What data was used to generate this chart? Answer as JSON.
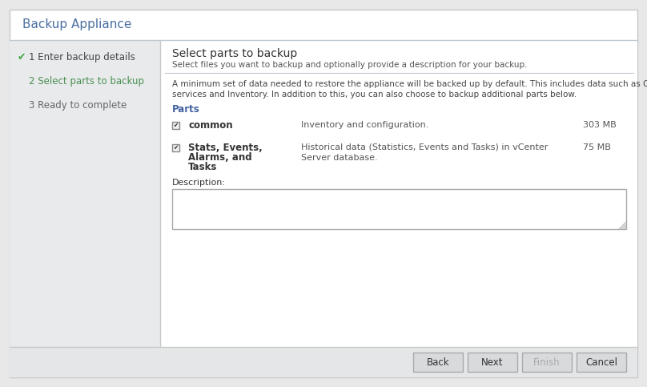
{
  "title": "Backup Appliance",
  "title_color": "#4a6fa0",
  "bg_outer": "#e8e8e8",
  "bg_white": "#ffffff",
  "bg_left_panel": "#e8eaec",
  "border_color": "#c8c8c8",
  "header_sep_color": "#c0c8d0",
  "left_panel_items": [
    {
      "text": "1 Enter backup details",
      "color": "#444444",
      "checkmark": true
    },
    {
      "text": "2 Select parts to backup",
      "color": "#4a9050"
    },
    {
      "text": "3 Ready to complete",
      "color": "#666666"
    }
  ],
  "main_title": "Select parts to backup",
  "main_subtitle": "Select files you want to backup and optionally provide a description for your backup.",
  "info_text_line1": "A minimum set of data needed to restore the appliance will be backed up by default. This includes data such as OS, VC",
  "info_text_line2": "services and Inventory. In addition to this, you can also choose to backup additional parts below.",
  "parts_label": "Parts",
  "parts_label_color": "#4060a0",
  "parts": [
    {
      "name": "common",
      "description_line1": "Inventory and configuration.",
      "description_line2": "",
      "size": "303 MB",
      "checked": true,
      "name_rows": 1
    },
    {
      "name_line1": "Stats, Events,",
      "name_line2": "Alarms, and",
      "name_line3": "Tasks",
      "description_line1": "Historical data (Statistics, Events and Tasks) in vCenter",
      "description_line2": "Server database.",
      "size": "75 MB",
      "checked": true,
      "name_rows": 3
    }
  ],
  "description_label": "Description:",
  "buttons": [
    "Back",
    "Next",
    "Finish",
    "Cancel"
  ],
  "button_active_bg": "#d8dadc",
  "button_active_border": "#aaaaaa",
  "button_inactive_text": "#aaaaaa",
  "text_color_main": "#333333",
  "text_color_gray": "#555555",
  "text_color_info": "#444444",
  "green_check_color": "#44aa44",
  "checkbox_border": "#888888",
  "checkbox_fill": "#f0f0f0"
}
